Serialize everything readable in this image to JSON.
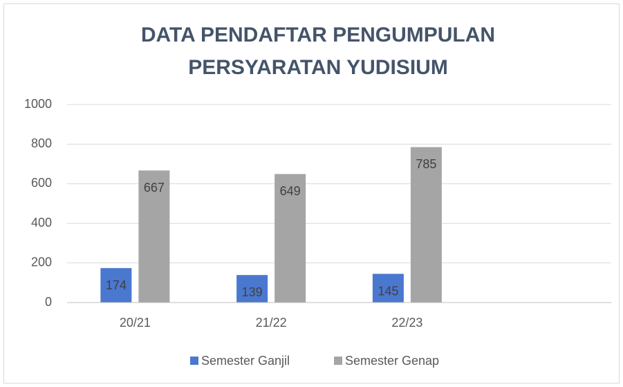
{
  "chart_data": {
    "type": "bar",
    "title": "DATA PENDAFTAR PENGUMPULAN PERSYARATAN YUDISIUM",
    "categories": [
      "20/21",
      "21/22",
      "22/23",
      null
    ],
    "series": [
      {
        "name": "Semester Ganjil",
        "color": "#4a78cf",
        "values": [
          174,
          139,
          145,
          null
        ]
      },
      {
        "name": "Semester Genap",
        "color": "#a5a5a5",
        "values": [
          667,
          649,
          785,
          null
        ]
      }
    ],
    "ylim": [
      0,
      1000
    ],
    "yticks": [
      0,
      200,
      400,
      600,
      800,
      1000
    ],
    "grid": true,
    "legend": "bottom"
  }
}
